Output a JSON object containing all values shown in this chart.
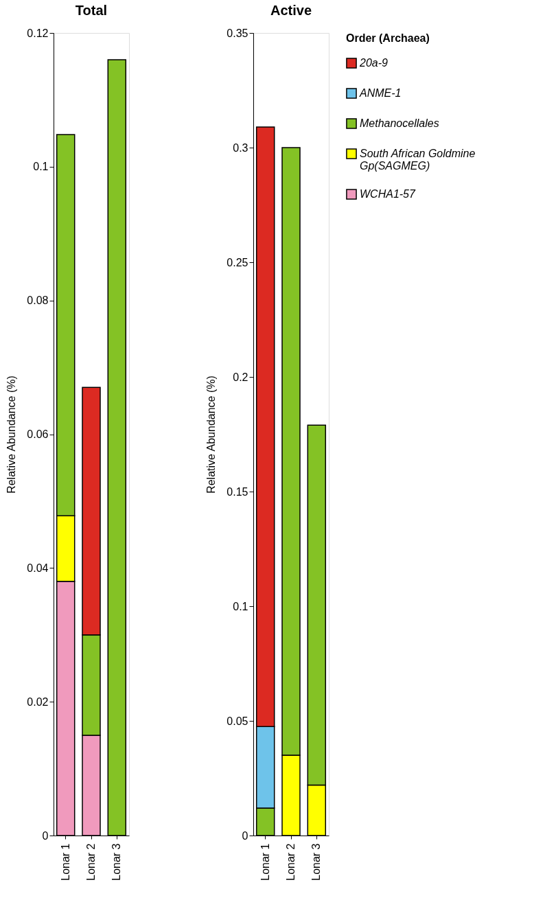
{
  "chart_data": [
    {
      "type": "bar",
      "stacked": true,
      "title": "Total",
      "ylabel": "Relative Abundance (%)",
      "categories": [
        "Lonar 1",
        "Lonar 2",
        "Lonar 3"
      ],
      "ylim": [
        0,
        0.12
      ],
      "yticks": [
        0,
        0.02,
        0.04,
        0.06,
        0.08,
        {
          "value": 0.1,
          "label": "0.1"
        },
        0.12
      ],
      "grid": false,
      "series": [
        {
          "color": "#f09abd",
          "values": [
            0.038,
            0.015,
            null
          ]
        },
        {
          "color": "#ffff00",
          "values": [
            0.0098,
            null,
            null
          ]
        },
        {
          "color": "#84c225",
          "values": [
            0.057,
            0.015,
            0.116
          ]
        },
        {
          "color": "#6ec3ea",
          "values": [
            null,
            null,
            null
          ]
        },
        {
          "color": "#dc2a22",
          "values": [
            null,
            0.037,
            null
          ]
        }
      ]
    },
    {
      "type": "bar",
      "stacked": true,
      "title": "Active",
      "ylabel": "Relative Abundance (%)",
      "categories": [
        "Lonar 1",
        "Lonar 2",
        "Lonar 3"
      ],
      "ylim": [
        0,
        0.35
      ],
      "yticks": [
        0,
        0.05,
        {
          "value": 0.1,
          "label": "0.1"
        },
        0.15,
        {
          "value": 0.2,
          "label": "0.2"
        },
        0.25,
        {
          "value": 0.3,
          "label": "0.3"
        },
        0.35
      ],
      "grid": false,
      "legend": "right",
      "legend_title": "Order (Archaea)",
      "series": [
        {
          "name": "WCHA1-57",
          "color": "#f09abd",
          "values": [
            null,
            null,
            null
          ]
        },
        {
          "name": "South African Goldmine Gp(SAGMEG)",
          "color": "#ffff00",
          "values": [
            null,
            0.035,
            0.022
          ]
        },
        {
          "name": "Methanocellales",
          "color": "#84c225",
          "values": [
            0.012,
            0.265,
            0.157
          ]
        },
        {
          "name": "ANME-1",
          "color": "#6ec3ea",
          "values": [
            0.0355,
            null,
            null
          ]
        },
        {
          "name": "20a-9",
          "color": "#dc2a22",
          "values": [
            0.2615,
            null,
            null
          ]
        }
      ]
    }
  ]
}
